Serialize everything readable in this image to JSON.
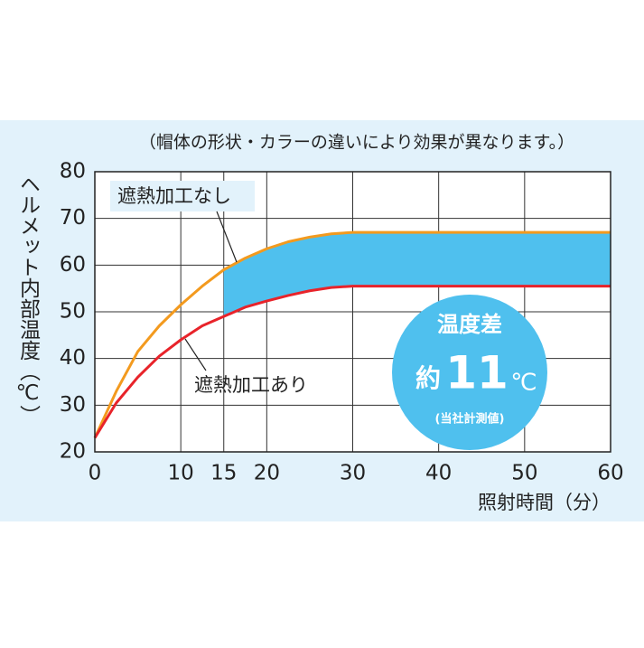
{
  "chart_data": {
    "type": "line",
    "note": "（帽体の形状・カラーの違いにより効果が異なります。）",
    "y_label": "ヘルメット内部温度（℃）",
    "x_label": "照射時間（分）",
    "x": [
      0,
      2.5,
      5,
      7.5,
      10,
      12.5,
      15,
      17.5,
      20,
      22.5,
      25,
      27.5,
      30,
      60
    ],
    "series": [
      {
        "name": "遮熱加工なし",
        "color": "#f39a1e",
        "values": [
          23,
          33,
          41.5,
          47,
          51.5,
          55.5,
          59,
          61.5,
          63.5,
          65,
          66,
          66.7,
          67,
          67
        ]
      },
      {
        "name": "遮熱加工あり",
        "color": "#e8232a",
        "values": [
          23,
          30.5,
          36,
          40.5,
          44,
          47,
          49,
          51,
          52.3,
          53.5,
          54.5,
          55.2,
          55.5,
          55.5
        ]
      }
    ],
    "shade_start": 15,
    "shade_color": "#4fc0ee",
    "xlim": [
      0,
      60
    ],
    "xticks": [
      0,
      10,
      15,
      20,
      30,
      40,
      50,
      60
    ],
    "ylim": [
      20,
      80
    ],
    "yticks": [
      20,
      30,
      40,
      50,
      60,
      70,
      80
    ],
    "grid": true,
    "badge": {
      "title": "温度差",
      "prefix": "約",
      "value": "11",
      "unit": "℃",
      "footnote": "(当社計測値)"
    }
  }
}
